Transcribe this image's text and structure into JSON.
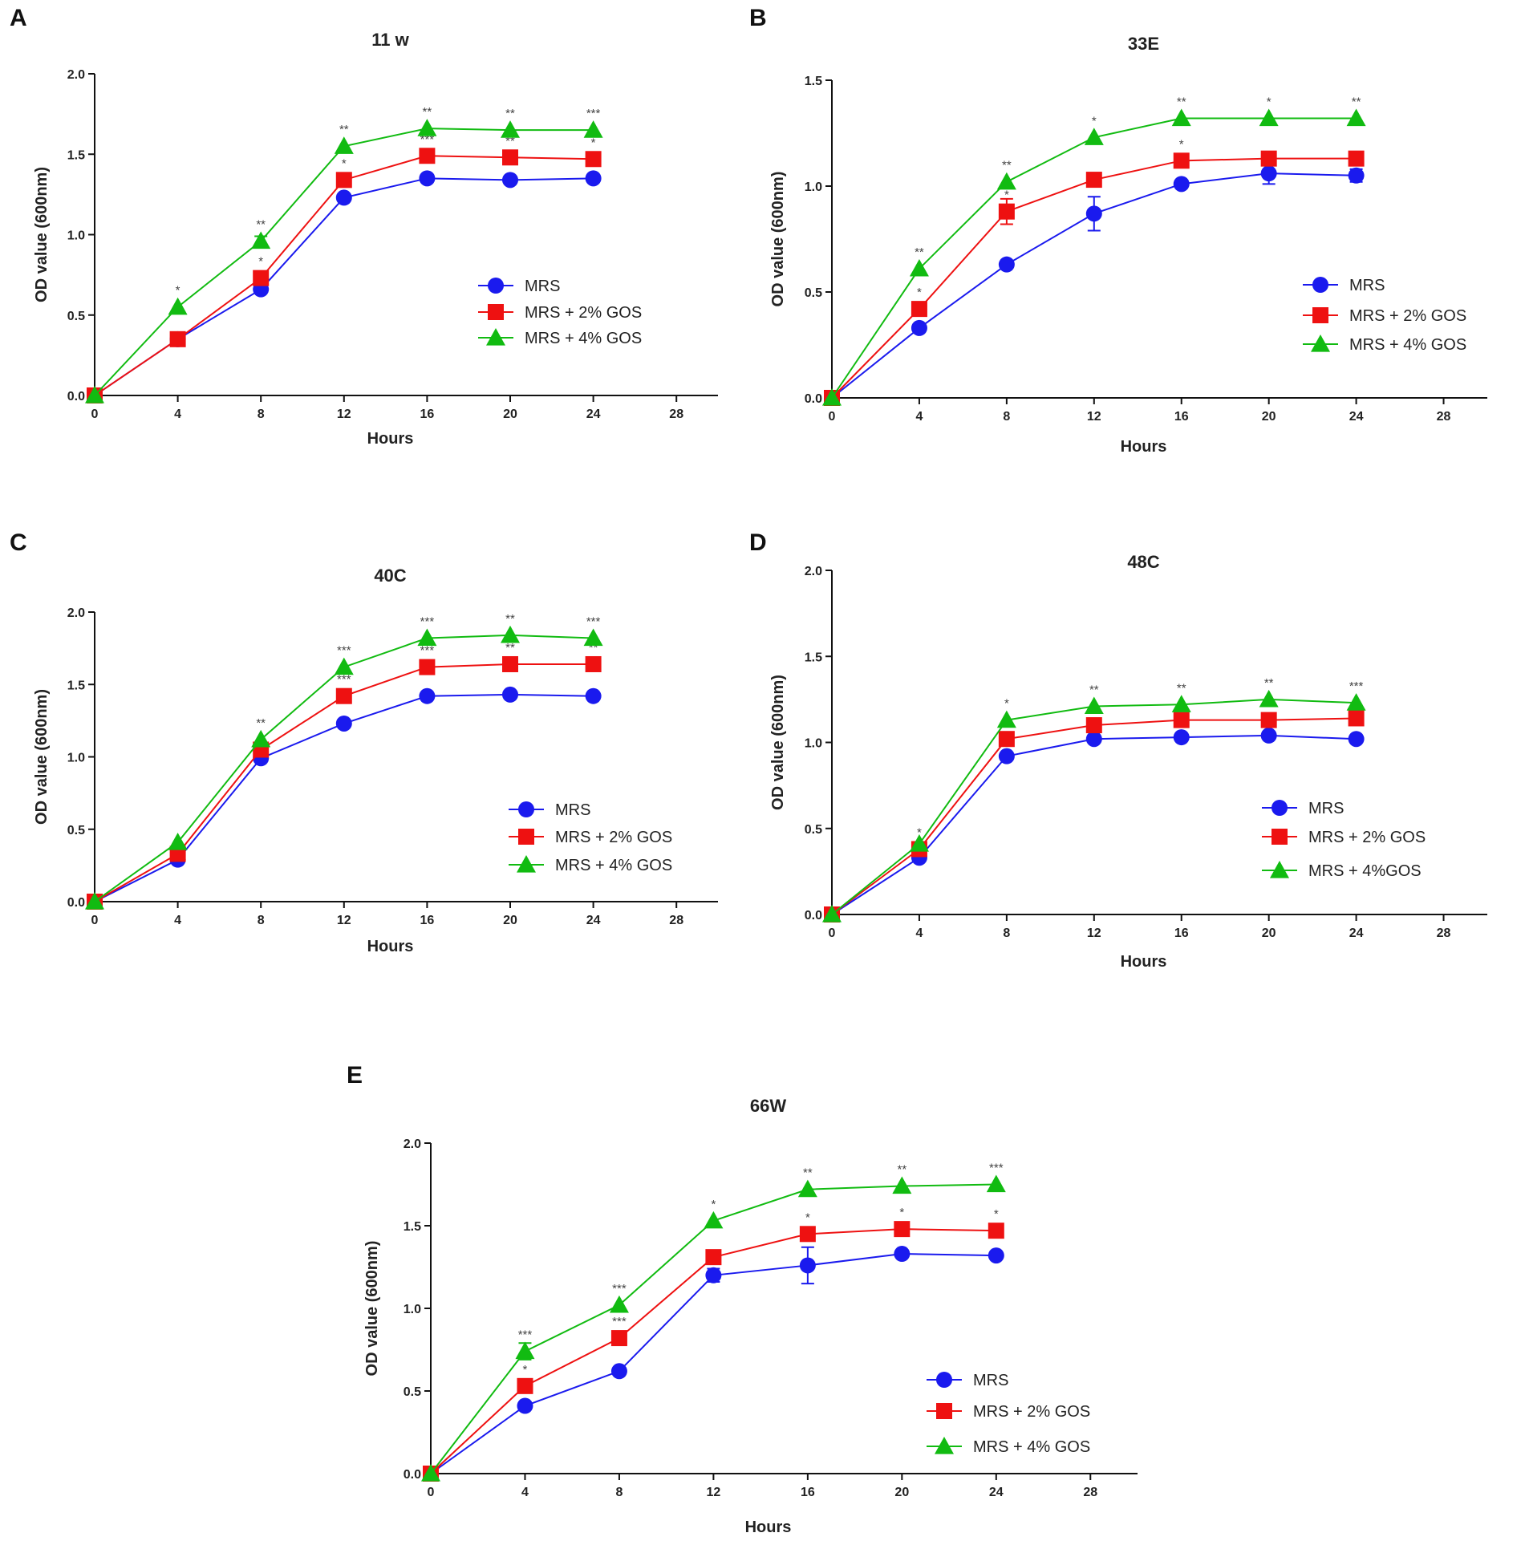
{
  "colors": {
    "MRS": "#1a1aee",
    "MRS + 2% GOS": "#ee1111",
    "MRS + 4% GOS": "#11bb11"
  },
  "chart_data": [
    {
      "panel": "A",
      "title": "11 w",
      "type": "line",
      "xlabel": "Hours",
      "ylabel": "OD value (600nm)",
      "xlim": [
        0,
        30
      ],
      "ylim": [
        0,
        2.0
      ],
      "xticks": [
        0,
        4,
        8,
        12,
        16,
        20,
        24,
        28
      ],
      "yticks": [
        0.0,
        0.5,
        1.0,
        1.5,
        2.0
      ],
      "x": [
        0,
        4,
        8,
        12,
        16,
        20,
        24
      ],
      "legend": [
        "MRS",
        "MRS + 2% GOS",
        "MRS + 4% GOS"
      ],
      "series": [
        {
          "name": "MRS",
          "marker": "circle",
          "values": [
            0,
            0.35,
            0.66,
            1.23,
            1.35,
            1.34,
            1.35
          ],
          "errors": [
            0,
            0,
            0,
            0,
            0,
            0,
            0
          ]
        },
        {
          "name": "MRS + 2% GOS",
          "marker": "square",
          "values": [
            0,
            0.35,
            0.73,
            1.34,
            1.49,
            1.48,
            1.47
          ],
          "errors": [
            0,
            0,
            0,
            0,
            0,
            0,
            0
          ],
          "sig": [
            "",
            "",
            "*",
            "*",
            "***",
            "**",
            "*"
          ]
        },
        {
          "name": "MRS + 4% GOS",
          "marker": "triangle",
          "values": [
            0,
            0.55,
            0.96,
            1.55,
            1.66,
            1.65,
            1.65
          ],
          "errors": [
            0,
            0,
            0.03,
            0,
            0,
            0,
            0
          ],
          "sig": [
            "",
            "*",
            "**",
            "**",
            "**",
            "**",
            "***"
          ]
        }
      ]
    },
    {
      "panel": "B",
      "title": "33E",
      "type": "line",
      "xlabel": "Hours",
      "ylabel": "OD value (600nm)",
      "xlim": [
        0,
        30
      ],
      "ylim": [
        0,
        1.5
      ],
      "xticks": [
        0,
        4,
        8,
        12,
        16,
        20,
        24,
        28
      ],
      "yticks": [
        0.0,
        0.5,
        1.0,
        1.5
      ],
      "x": [
        0,
        4,
        8,
        12,
        16,
        20,
        24
      ],
      "legend": [
        "MRS",
        "MRS + 2% GOS",
        "MRS + 4% GOS"
      ],
      "series": [
        {
          "name": "MRS",
          "marker": "circle",
          "values": [
            0,
            0.33,
            0.63,
            0.87,
            1.01,
            1.06,
            1.05
          ],
          "errors": [
            0,
            0,
            0,
            0.08,
            0,
            0.05,
            0.03
          ]
        },
        {
          "name": "MRS + 2% GOS",
          "marker": "square",
          "values": [
            0,
            0.42,
            0.88,
            1.03,
            1.12,
            1.13,
            1.13
          ],
          "errors": [
            0,
            0,
            0.06,
            0,
            0,
            0,
            0
          ],
          "sig": [
            "",
            "*",
            "*",
            "",
            "*",
            "",
            ""
          ]
        },
        {
          "name": "MRS + 4% GOS",
          "marker": "triangle",
          "values": [
            0,
            0.61,
            1.02,
            1.23,
            1.32,
            1.32,
            1.32
          ],
          "errors": [
            0,
            0,
            0,
            0,
            0,
            0,
            0
          ],
          "sig": [
            "",
            "**",
            "**",
            "*",
            "**",
            "*",
            "**"
          ]
        }
      ]
    },
    {
      "panel": "C",
      "title": "40C",
      "type": "line",
      "xlabel": "Hours",
      "ylabel": "OD value (600nm)",
      "xlim": [
        0,
        30
      ],
      "ylim": [
        0,
        2.0
      ],
      "xticks": [
        0,
        4,
        8,
        12,
        16,
        20,
        24,
        28
      ],
      "yticks": [
        0.0,
        0.5,
        1.0,
        1.5,
        2.0
      ],
      "x": [
        0,
        4,
        8,
        12,
        16,
        20,
        24
      ],
      "legend": [
        "MRS",
        "MRS + 2% GOS",
        "MRS + 4% GOS"
      ],
      "series": [
        {
          "name": "MRS",
          "marker": "circle",
          "values": [
            0,
            0.29,
            0.99,
            1.23,
            1.42,
            1.43,
            1.42
          ],
          "errors": [
            0,
            0,
            0,
            0,
            0,
            0,
            0
          ]
        },
        {
          "name": "MRS + 2% GOS",
          "marker": "square",
          "values": [
            0,
            0.33,
            1.05,
            1.42,
            1.62,
            1.64,
            1.64
          ],
          "errors": [
            0,
            0,
            0,
            0,
            0,
            0,
            0
          ],
          "sig": [
            "",
            "",
            "",
            "***",
            "***",
            "**",
            "**"
          ]
        },
        {
          "name": "MRS + 4% GOS",
          "marker": "triangle",
          "values": [
            0,
            0.41,
            1.12,
            1.62,
            1.82,
            1.84,
            1.82
          ],
          "errors": [
            0,
            0,
            0,
            0,
            0,
            0,
            0
          ],
          "sig": [
            "",
            "",
            "**",
            "***",
            "***",
            "**",
            "***"
          ]
        }
      ]
    },
    {
      "panel": "D",
      "title": "48C",
      "type": "line",
      "xlabel": "Hours",
      "ylabel": "OD value (600nm)",
      "xlim": [
        0,
        30
      ],
      "ylim": [
        0,
        2.0
      ],
      "xticks": [
        0,
        4,
        8,
        12,
        16,
        20,
        24,
        28
      ],
      "yticks": [
        0.0,
        0.5,
        1.0,
        1.5,
        2.0
      ],
      "x": [
        0,
        4,
        8,
        12,
        16,
        20,
        24
      ],
      "legend": [
        "MRS",
        "MRS + 2% GOS",
        "MRS + 4%GOS"
      ],
      "series": [
        {
          "name": "MRS",
          "marker": "circle",
          "values": [
            0,
            0.33,
            0.92,
            1.02,
            1.03,
            1.04,
            1.02
          ],
          "errors": [
            0,
            0,
            0,
            0,
            0,
            0,
            0
          ]
        },
        {
          "name": "MRS + 2% GOS",
          "marker": "square",
          "values": [
            0,
            0.38,
            1.02,
            1.1,
            1.13,
            1.13,
            1.14
          ],
          "errors": [
            0,
            0,
            0,
            0,
            0,
            0,
            0
          ],
          "sig": [
            "",
            "*",
            "",
            "",
            "",
            "",
            ""
          ]
        },
        {
          "name": "MRS + 4% GOS",
          "marker": "triangle",
          "values": [
            0,
            0.41,
            1.13,
            1.21,
            1.22,
            1.25,
            1.23
          ],
          "errors": [
            0,
            0,
            0,
            0,
            0,
            0,
            0
          ],
          "sig": [
            "",
            "",
            "*",
            "**",
            "**",
            "**",
            "***"
          ]
        }
      ]
    },
    {
      "panel": "E",
      "title": "66W",
      "type": "line",
      "xlabel": "Hours",
      "ylabel": "OD value (600nm)",
      "xlim": [
        0,
        30
      ],
      "ylim": [
        0,
        2.0
      ],
      "xticks": [
        0,
        4,
        8,
        12,
        16,
        20,
        24,
        28
      ],
      "yticks": [
        0.0,
        0.5,
        1.0,
        1.5,
        2.0
      ],
      "x": [
        0,
        4,
        8,
        12,
        16,
        20,
        24
      ],
      "legend": [
        "MRS",
        "MRS + 2% GOS",
        "MRS + 4% GOS"
      ],
      "series": [
        {
          "name": "MRS",
          "marker": "circle",
          "values": [
            0,
            0.41,
            0.62,
            1.2,
            1.26,
            1.33,
            1.32
          ],
          "errors": [
            0,
            0,
            0,
            0.04,
            0.11,
            0,
            0
          ]
        },
        {
          "name": "MRS + 2% GOS",
          "marker": "square",
          "values": [
            0,
            0.53,
            0.82,
            1.31,
            1.45,
            1.48,
            1.47
          ],
          "errors": [
            0,
            0,
            0,
            0,
            0,
            0.04,
            0
          ],
          "sig": [
            "",
            "*",
            "***",
            "",
            "*",
            "*",
            "*"
          ]
        },
        {
          "name": "MRS + 4% GOS",
          "marker": "triangle",
          "values": [
            0,
            0.74,
            1.02,
            1.53,
            1.72,
            1.74,
            1.75
          ],
          "errors": [
            0,
            0.05,
            0,
            0,
            0,
            0,
            0
          ],
          "sig": [
            "",
            "***",
            "***",
            "*",
            "**",
            "**",
            "***"
          ]
        }
      ]
    }
  ]
}
